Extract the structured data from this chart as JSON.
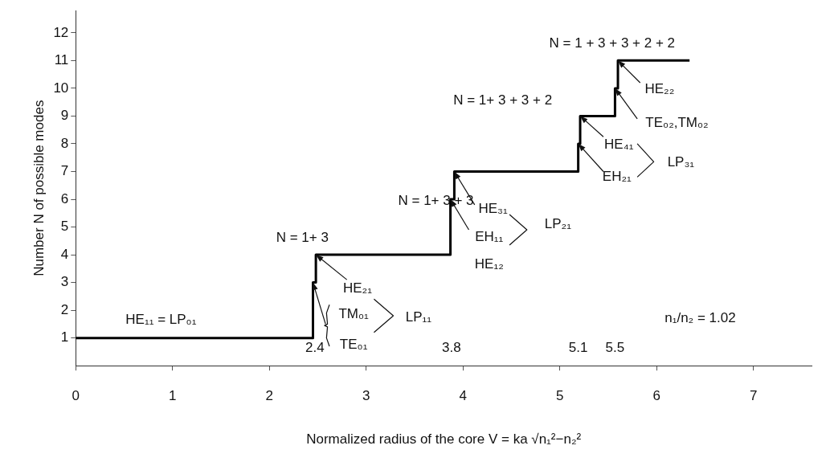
{
  "chart_data": {
    "type": "step",
    "xlabel": "Normalized radius of the core V = ka √n₁²−n₂²",
    "ylabel": "Number N of possible modes",
    "x": [
      0,
      2.45,
      2.48,
      3.87,
      3.91,
      5.19,
      5.21,
      5.57,
      5.6,
      6.34
    ],
    "series": [
      {
        "color": "#000000",
        "values": [
          1,
          3,
          4,
          6,
          7,
          8,
          9,
          10,
          11,
          11
        ]
      }
    ],
    "xlim": [
      0,
      7.6
    ],
    "xticks": [
      0,
      1,
      2,
      3,
      4,
      5,
      6,
      7
    ],
    "ylim": [
      0,
      12.8
    ],
    "yticks": [
      1,
      2,
      3,
      4,
      5,
      6,
      7,
      8,
      9,
      10,
      11,
      12
    ],
    "grid": false,
    "legend": false,
    "marker": "none",
    "line_style": "solid",
    "annotations": [
      "HE₁₁ = LP₀₁",
      "N = 1+ 3",
      {
        "text": "HE₂₁",
        "x": 2.48,
        "y": 4
      },
      {
        "text": "TM₀₁",
        "x": 2.45,
        "y": 3
      },
      "TE₀₁",
      "LP₁₁",
      "2.4",
      "3.8",
      "N = 1+ 3 + 3",
      {
        "text": "HE₃₁",
        "x": 3.91,
        "y": 7
      },
      {
        "text": "EH₁₁",
        "x": 3.87,
        "y": 6
      },
      "HE₁₂",
      "LP₂₁",
      "N = 1+ 3 + 3 + 2",
      {
        "text": "HE₄₁",
        "x": 5.21,
        "y": 9
      },
      {
        "text": "EH₂₁",
        "x": 5.19,
        "y": 8
      },
      "LP₃₁",
      {
        "text": "TE₀₂,TM₀₂",
        "x": 5.57,
        "y": 10
      },
      {
        "text": "HE₂₂",
        "x": 5.6,
        "y": 11
      },
      "N = 1 + 3 + 3 + 2 + 2",
      "5.1",
      "5.5",
      "n₁/n₂ = 1.02"
    ]
  }
}
